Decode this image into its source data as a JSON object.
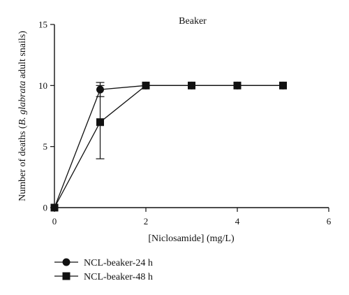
{
  "chart_data": {
    "type": "line",
    "title": "Beaker",
    "xlabel": "[Niclosamide] (mg/L)",
    "ylabel_prefix": "Number of deaths (",
    "ylabel_italic": "B. glabrata",
    "ylabel_suffix": " adult snails)",
    "xlim": [
      0,
      6
    ],
    "ylim": [
      0,
      15
    ],
    "xticks": [
      0,
      2,
      4,
      6
    ],
    "yticks": [
      0,
      5,
      10,
      15
    ],
    "grid": false,
    "legend_position": "bottom-left",
    "series": [
      {
        "name": "NCL-beaker-24 h",
        "marker": "circle",
        "x": [
          0,
          1,
          2,
          3,
          4,
          5
        ],
        "y": [
          0,
          9.67,
          10,
          10,
          10,
          10
        ],
        "err": [
          0,
          0.58,
          0,
          0,
          0,
          0
        ]
      },
      {
        "name": "NCL-beaker-48 h",
        "marker": "square",
        "x": [
          0,
          1,
          2,
          3,
          4,
          5
        ],
        "y": [
          0,
          7,
          10,
          10,
          10,
          10
        ],
        "err": [
          0,
          3,
          0,
          0,
          0,
          0
        ]
      }
    ]
  }
}
